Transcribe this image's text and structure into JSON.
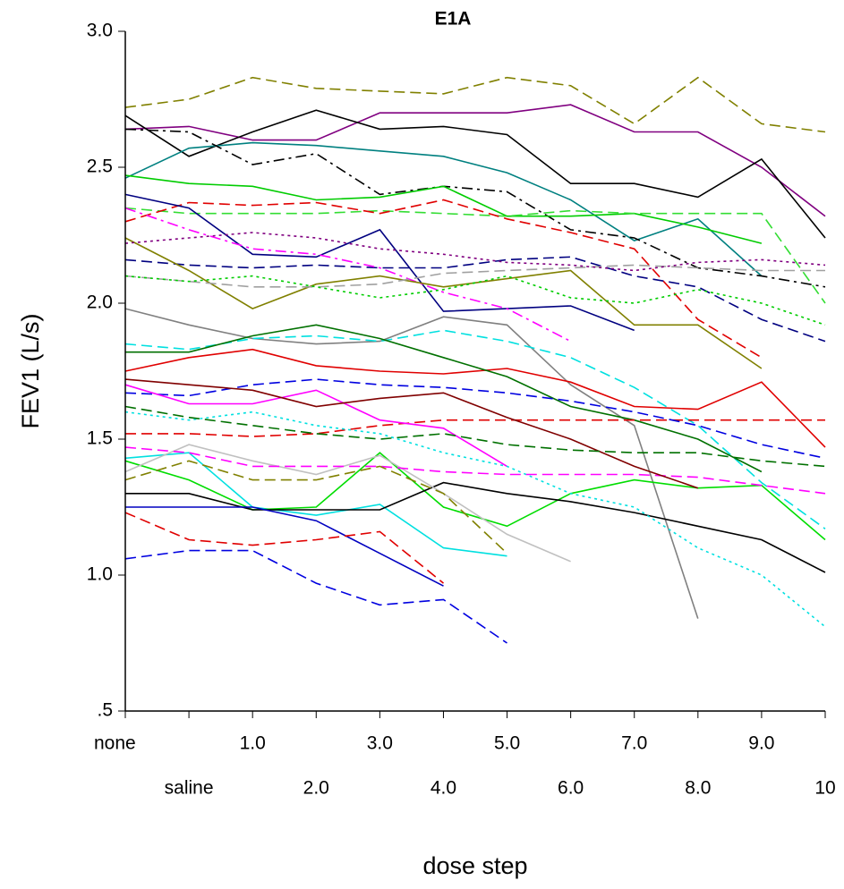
{
  "chart_data": {
    "type": "line",
    "title": "E1A",
    "x_label": "dose step",
    "y_label": "FEV1 (L/s)",
    "categories": [
      "none",
      "saline",
      "1.0",
      "2.0",
      "3.0",
      "4.0",
      "5.0",
      "6.0",
      "7.0",
      "8.0",
      "9.0",
      "10"
    ],
    "ylim": [
      0.5,
      3.0
    ],
    "yticks": [
      {
        "value": 0.5,
        "label": ".5"
      },
      {
        "value": 1.0,
        "label": "1.0"
      },
      {
        "value": 1.5,
        "label": "1.5"
      },
      {
        "value": 2.0,
        "label": "2.0"
      },
      {
        "value": 2.5,
        "label": "2.5"
      },
      {
        "value": 3.0,
        "label": "3.0"
      }
    ],
    "grid": false,
    "series": [
      {
        "color": "#808000",
        "dash": "dashed",
        "values": [
          2.72,
          2.75,
          2.83,
          2.79,
          2.78,
          2.77,
          2.83,
          2.8,
          2.66,
          2.83,
          2.66,
          2.63
        ]
      },
      {
        "color": "#800080",
        "dash": "solid",
        "values": [
          2.64,
          2.65,
          2.6,
          2.6,
          2.7,
          2.7,
          2.7,
          2.73,
          2.63,
          2.63,
          2.5,
          2.32
        ]
      },
      {
        "color": "#000000",
        "dash": "solid",
        "values": [
          2.69,
          2.54,
          2.63,
          2.71,
          2.64,
          2.65,
          2.62,
          2.44,
          2.44,
          2.39,
          2.53,
          2.24
        ]
      },
      {
        "color": "#008080",
        "dash": "solid",
        "values": [
          2.46,
          2.57,
          2.59,
          2.58,
          2.56,
          2.54,
          2.48,
          2.38,
          2.23,
          2.31,
          2.1,
          null
        ]
      },
      {
        "color": "#000000",
        "dash": "dashdot",
        "values": [
          2.64,
          2.63,
          2.51,
          2.55,
          2.4,
          2.43,
          2.41,
          2.27,
          2.24,
          2.13,
          2.1,
          2.06
        ]
      },
      {
        "color": "#00cc00",
        "dash": "solid",
        "values": [
          2.47,
          2.44,
          2.43,
          2.38,
          2.39,
          2.43,
          2.32,
          2.32,
          2.33,
          2.28,
          2.22,
          null
        ]
      },
      {
        "color": "#33dd33",
        "dash": "dashed",
        "values": [
          2.35,
          2.33,
          2.33,
          2.33,
          2.34,
          2.33,
          2.32,
          2.34,
          2.33,
          2.33,
          2.33,
          2.0
        ]
      },
      {
        "color": "#e00000",
        "dash": "dashed",
        "values": [
          2.3,
          2.37,
          2.36,
          2.37,
          2.33,
          2.38,
          2.31,
          2.26,
          2.2,
          1.94,
          1.8,
          null
        ]
      },
      {
        "color": "#000080",
        "dash": "solid",
        "values": [
          2.4,
          2.35,
          2.18,
          2.17,
          2.27,
          1.97,
          1.98,
          1.99,
          1.9,
          null,
          null,
          null
        ]
      },
      {
        "color": "#000080",
        "dash": "dashed",
        "values": [
          2.16,
          2.14,
          2.13,
          2.14,
          2.13,
          2.13,
          2.16,
          2.17,
          2.1,
          2.06,
          1.94,
          1.86
        ]
      },
      {
        "color": "#ff00ff",
        "dash": "dashdot",
        "values": [
          2.35,
          2.27,
          2.2,
          2.18,
          2.13,
          2.04,
          1.98,
          1.86,
          null,
          null,
          null,
          null
        ]
      },
      {
        "color": "#808000",
        "dash": "solid",
        "values": [
          2.24,
          2.12,
          1.98,
          2.07,
          2.1,
          2.06,
          2.09,
          2.12,
          1.92,
          1.92,
          1.76,
          null
        ]
      },
      {
        "color": "#a0a0a0",
        "dash": "dashed",
        "values": [
          2.1,
          2.08,
          2.06,
          2.06,
          2.07,
          2.11,
          2.12,
          2.13,
          2.14,
          2.13,
          2.12,
          2.12
        ]
      },
      {
        "color": "#808080",
        "dash": "solid",
        "values": [
          1.98,
          1.92,
          1.87,
          1.85,
          1.86,
          1.95,
          1.92,
          1.7,
          1.55,
          0.84,
          null,
          null
        ]
      },
      {
        "color": "#00e0e0",
        "dash": "dashed",
        "values": [
          1.85,
          1.83,
          1.87,
          1.88,
          1.86,
          1.9,
          1.86,
          1.8,
          1.69,
          1.55,
          1.34,
          1.17
        ]
      },
      {
        "color": "#e00000",
        "dash": "solid",
        "values": [
          1.75,
          1.8,
          1.83,
          1.77,
          1.75,
          1.74,
          1.76,
          1.71,
          1.62,
          1.61,
          1.71,
          1.47
        ]
      },
      {
        "color": "#007000",
        "dash": "solid",
        "values": [
          1.82,
          1.82,
          1.88,
          1.92,
          1.87,
          1.8,
          1.73,
          1.62,
          1.57,
          1.5,
          1.38,
          null
        ]
      },
      {
        "color": "#e00000",
        "dash": "dashed",
        "values": [
          1.52,
          1.52,
          1.51,
          1.52,
          1.55,
          1.57,
          1.57,
          1.57,
          1.57,
          1.57,
          1.57,
          1.57
        ]
      },
      {
        "color": "#0000e0",
        "dash": "dashed",
        "values": [
          1.67,
          1.66,
          1.7,
          1.72,
          1.7,
          1.69,
          1.67,
          1.64,
          1.6,
          1.55,
          1.48,
          1.43
        ]
      },
      {
        "color": "#ff00ff",
        "dash": "solid",
        "values": [
          1.7,
          1.63,
          1.63,
          1.68,
          1.57,
          1.54,
          1.4,
          null,
          null,
          null,
          null,
          null
        ]
      },
      {
        "color": "#00e0e0",
        "dash": "solid",
        "values": [
          1.43,
          1.45,
          1.25,
          1.22,
          1.26,
          1.1,
          1.07,
          null,
          null,
          null,
          null,
          null
        ]
      },
      {
        "color": "#00dd00",
        "dash": "solid",
        "values": [
          1.42,
          1.35,
          1.24,
          1.25,
          1.45,
          1.25,
          1.18,
          1.3,
          1.35,
          1.32,
          1.33,
          1.13
        ]
      },
      {
        "color": "#000000",
        "dash": "solid",
        "values": [
          1.3,
          1.3,
          1.24,
          1.24,
          1.24,
          1.34,
          1.3,
          1.27,
          1.23,
          1.18,
          1.13,
          1.01
        ]
      },
      {
        "color": "#0000c0",
        "dash": "solid",
        "values": [
          1.25,
          1.25,
          1.25,
          1.2,
          1.08,
          0.96,
          null,
          null,
          null,
          null,
          null,
          null
        ]
      },
      {
        "color": "#e00000",
        "dash": "dashed",
        "values": [
          1.23,
          1.13,
          1.11,
          1.13,
          1.16,
          0.97,
          null,
          null,
          null,
          null,
          null,
          null
        ]
      },
      {
        "color": "#0000e0",
        "dash": "dashed",
        "values": [
          1.06,
          1.09,
          1.09,
          0.97,
          0.89,
          0.91,
          0.75,
          null,
          null,
          null,
          null,
          null
        ]
      },
      {
        "color": "#c0c0c0",
        "dash": "solid",
        "values": [
          1.38,
          1.48,
          1.42,
          1.37,
          1.44,
          1.3,
          1.15,
          1.05,
          null,
          null,
          null,
          null
        ]
      },
      {
        "color": "#00e0e0",
        "dash": "dotted",
        "values": [
          1.6,
          1.57,
          1.6,
          1.55,
          1.52,
          1.45,
          1.4,
          1.3,
          1.25,
          1.1,
          1.0,
          0.81
        ]
      },
      {
        "color": "#ff00ff",
        "dash": "dashed",
        "values": [
          1.47,
          1.45,
          1.4,
          1.4,
          1.4,
          1.38,
          1.37,
          1.37,
          1.37,
          1.36,
          1.33,
          1.3
        ]
      },
      {
        "color": "#800000",
        "dash": "solid",
        "values": [
          1.72,
          1.7,
          1.68,
          1.62,
          1.65,
          1.67,
          1.58,
          1.5,
          1.4,
          1.32,
          null,
          null
        ]
      },
      {
        "color": "#808000",
        "dash": "dashed",
        "values": [
          1.35,
          1.42,
          1.35,
          1.35,
          1.4,
          1.3,
          1.08,
          null,
          null,
          null,
          null,
          null
        ]
      },
      {
        "color": "#00cc00",
        "dash": "dotted",
        "values": [
          2.1,
          2.08,
          2.1,
          2.06,
          2.02,
          2.05,
          2.1,
          2.02,
          2.0,
          2.05,
          2.0,
          1.92
        ]
      },
      {
        "color": "#800080",
        "dash": "dotted",
        "values": [
          2.22,
          2.24,
          2.26,
          2.24,
          2.2,
          2.18,
          2.15,
          2.14,
          2.12,
          2.15,
          2.16,
          2.14
        ]
      },
      {
        "color": "#007000",
        "dash": "dashed",
        "values": [
          1.62,
          1.58,
          1.55,
          1.52,
          1.5,
          1.52,
          1.48,
          1.46,
          1.45,
          1.45,
          1.42,
          1.4
        ]
      }
    ]
  }
}
